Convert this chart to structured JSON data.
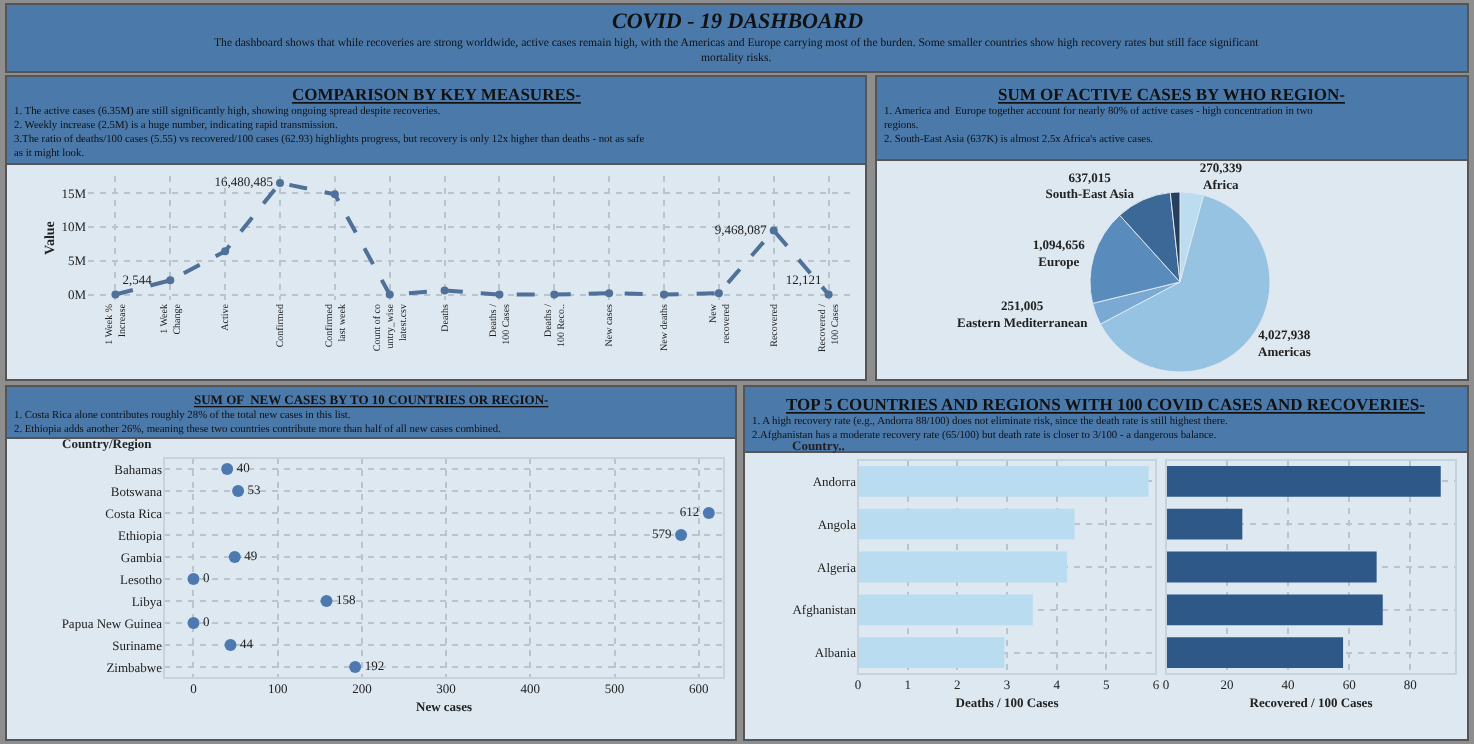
{
  "chart_data": [
    {
      "type": "other",
      "title": "COVID - 19 DASHBOARD",
      "subtitle": "The dashboard shows that while recoveries are strong worldwide, active cases remain high, with the Americas and Europe carrying most of the burden. Some smaller countries show high recovery rates but still face significant\nmortality risks."
    },
    {
      "type": "line",
      "title": "COMPARISON BY KEY MEASURES-",
      "subtitle": "1. The active cases (6.35M) are still significantly high, showing ongoing spread despite recoveries.\n2. Weekly increase (2.5M) is a huge number, indicating rapid transmission.\n3.The ratio of deaths/100 cases (5.55) vs recovered/100 cases (62.93) highlights progress, but recovery is only 12x higher than deaths - not as safe\nas it might look.",
      "ylabel": "Value",
      "categories": [
        "1 Week % Increase",
        "1 Week Change",
        "Active",
        "Confirmed",
        "Confirmed last week",
        "Count of country_wise latest.csv",
        "Deaths",
        "Deaths / 100 Cases",
        "Deaths / 100 Reco..",
        "New cases",
        "New deaths",
        "New recovered",
        "Recovered",
        "Recovered / 100 Cases"
      ],
      "values": [
        2544,
        2100000,
        6400000,
        16480485,
        14800000,
        0,
        600000,
        0,
        0,
        200000,
        0,
        200000,
        9468087,
        12121
      ],
      "value_labels": [
        "2,544",
        null,
        null,
        "16,480,485",
        null,
        null,
        null,
        null,
        null,
        null,
        null,
        null,
        "9,468,087",
        "12,121"
      ],
      "color": "#4f7098",
      "ylim": [
        -800000,
        17500000
      ],
      "yticks": [
        {
          "value": 0,
          "label": "0M"
        },
        {
          "value": 5000000,
          "label": "5M"
        },
        {
          "value": 10000000,
          "label": "10M"
        },
        {
          "value": 15000000,
          "label": "15M"
        }
      ],
      "grid": true,
      "marker": "circle",
      "line_style": "dashed"
    },
    {
      "type": "pie",
      "title": "SUM OF ACTIVE CASES BY WHO REGION-",
      "subtitle": "1. America and  Europe together account for nearly 80% of active cases - high concentration in two\nregions.\n2. South-East Asia (637K) is almost 2.5x Africa's active cases.",
      "categories": [
        "Africa",
        "Americas",
        "Eastern Mediterranean",
        "Europe",
        "South-East Asia",
        null
      ],
      "values": [
        270339,
        4027938,
        251005,
        1094656,
        637015,
        110000
      ],
      "value_labels": [
        "270,339",
        "4,027,938",
        "251,005",
        "1,094,656",
        "637,015",
        null
      ],
      "colors": [
        "#bcdcef",
        "#97c3e3",
        "#7aaad3",
        "#5a8bbd",
        "#3c6898",
        "#253f5f"
      ]
    },
    {
      "type": "scatter",
      "orientation": "horizontal",
      "title": "SUM OF  NEW CASES BY TO 10 COUNTRIES OR REGION-",
      "subtitle": "1. Costa Rica alone contributes roughly 28% of the total new cases in this list.\n2. Ethiopia adds another 26%, meaning these two countries contribute more than half of all new cases combined.",
      "ylabel": "Country/Region",
      "xlabel": "New cases",
      "categories": [
        "Bahamas",
        "Botswana",
        "Costa Rica",
        "Ethiopia",
        "Gambia",
        "Lesotho",
        "Libya",
        "Papua New Guinea",
        "Suriname",
        "Zimbabwe"
      ],
      "values": [
        40,
        53,
        612,
        579,
        49,
        0,
        158,
        0,
        44,
        192
      ],
      "color": "#4e79b0",
      "xlim": [
        -35,
        630
      ],
      "xticks": [
        0,
        100,
        200,
        300,
        400,
        500,
        600
      ],
      "grid": true,
      "data_labels": true,
      "marker": "circle"
    },
    {
      "type": "bar",
      "orientation": "horizontal",
      "title": "TOP 5 COUNTRIES AND REGIONS WITH 100 COVID CASES AND RECOVERIES-",
      "subtitle": "1. A high recovery rate (e.g., Andorra 88/100) does not eliminate risk, since the death rate is still highest there.\n2.Afghanistan has a moderate recovery rate (65/100) but death rate is closer to 3/100 - a dangerous balance.",
      "ylabel": "Country..",
      "xlabel": "Deaths / 100 Cases",
      "categories": [
        "Andorra",
        "Angola",
        "Algeria",
        "Afghanistan",
        "Albania"
      ],
      "values": [
        5.85,
        4.36,
        4.21,
        3.52,
        2.95
      ],
      "color": "#b9dcf0",
      "xlim": [
        0,
        6
      ],
      "xticks": [
        0,
        1,
        2,
        3,
        4,
        5,
        6
      ],
      "grid": true
    },
    {
      "type": "bar",
      "orientation": "horizontal",
      "xlabel": "Recovered / 100 Cases",
      "categories": [
        "Andorra",
        "Angola",
        "Algeria",
        "Afghanistan",
        "Albania"
      ],
      "values": [
        90,
        25,
        69,
        71,
        58
      ],
      "color": "#2d5887",
      "xlim": [
        0,
        95
      ],
      "xticks": [
        0,
        20,
        40,
        60,
        80
      ],
      "grid": true,
      "tick_labels": "x"
    }
  ]
}
